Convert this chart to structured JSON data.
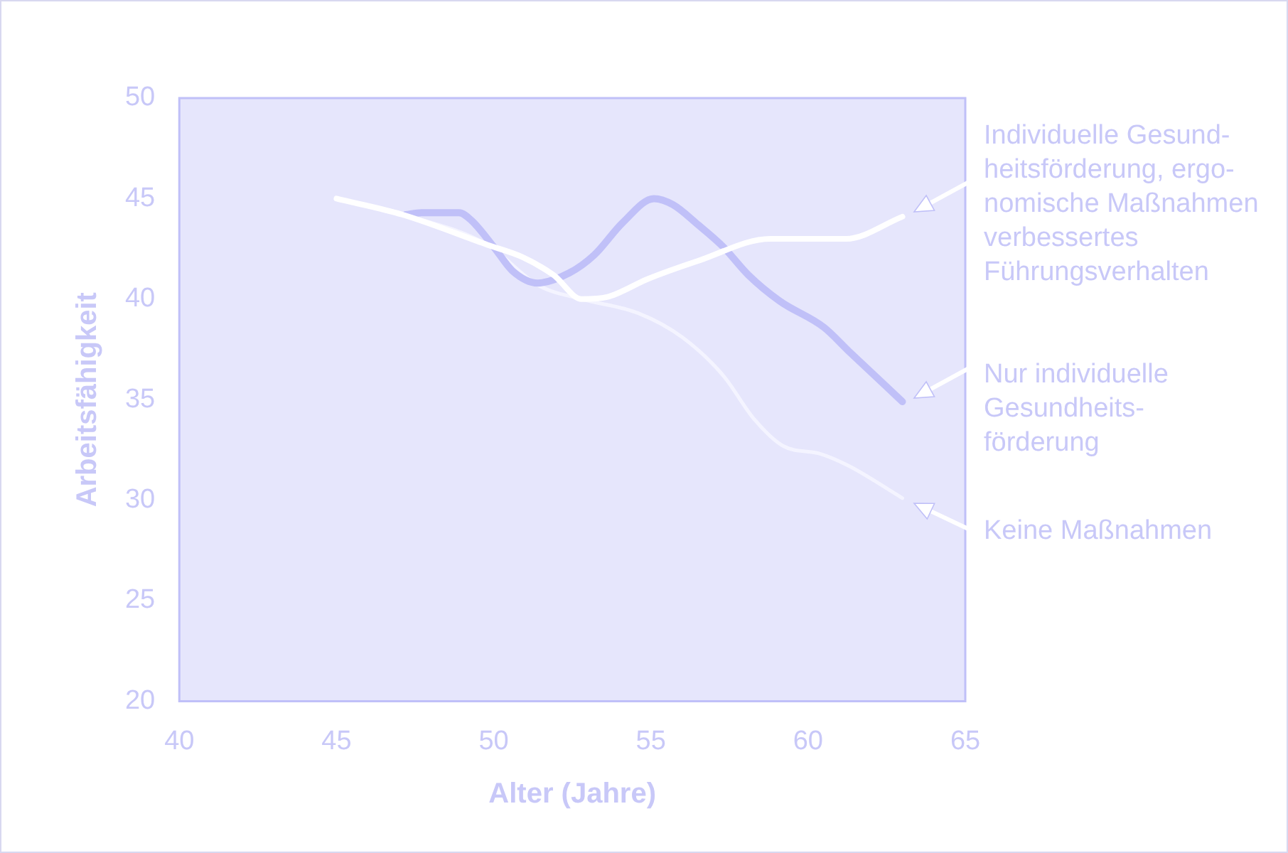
{
  "chart_data": {
    "type": "line",
    "xlabel": "Alter (Jahre)",
    "ylabel": "Arbeitsfähigkeit",
    "xlim": [
      40,
      65
    ],
    "xticks": [
      40,
      45,
      50,
      55,
      60,
      65
    ],
    "ylim": [
      20,
      50
    ],
    "yticks": [
      20,
      25,
      30,
      35,
      40,
      45,
      50
    ],
    "grid": false,
    "legend": "right",
    "marker": "none",
    "line_style": "solid",
    "series": [
      {
        "name": "Individuelle Gesund-\nheitsförderung, ergo-\nnomische Maßnahmen\nverbessertes\nFührungsverhalten",
        "color": "#ffffff",
        "x": [
          45,
          47.1,
          49.8,
          50.9,
          51.9,
          52.8,
          53.6,
          54.9,
          56.5,
          58.8,
          61.2,
          63
        ],
        "values": [
          45,
          44.2,
          42.7,
          42.1,
          41.2,
          40,
          40.1,
          41,
          41.9,
          43,
          43,
          44.1
        ]
      },
      {
        "name": "Nur individuelle\nGesundheits-\nförderung",
        "color": "#c0c0f8",
        "x": [
          47.2,
          47.7,
          48.9,
          49.3,
          50,
          50.6,
          51.4,
          52.4,
          53.2,
          54.1,
          55.1,
          55.7,
          56.5,
          57.3,
          58.1,
          59.1,
          60.5,
          61.3,
          63
        ],
        "values": [
          44.2,
          44.3,
          44.3,
          43.9,
          42.6,
          41.4,
          40.8,
          41.3,
          42.2,
          43.8,
          45,
          44.7,
          43.7,
          42.6,
          41.2,
          39.9,
          38.6,
          37.4,
          34.9
        ]
      },
      {
        "name": "Keine Maßnahmen",
        "color": "#f4f4ff",
        "x": [
          45,
          47.1,
          49.8,
          51.4,
          52.8,
          54.6,
          56,
          57.3,
          58.3,
          59.2,
          60.4,
          61.3,
          63
        ],
        "values": [
          45,
          44.2,
          42.7,
          40.7,
          40,
          39.3,
          38.1,
          36.2,
          34,
          32.7,
          32.3,
          31.7,
          30.1
        ]
      }
    ]
  }
}
